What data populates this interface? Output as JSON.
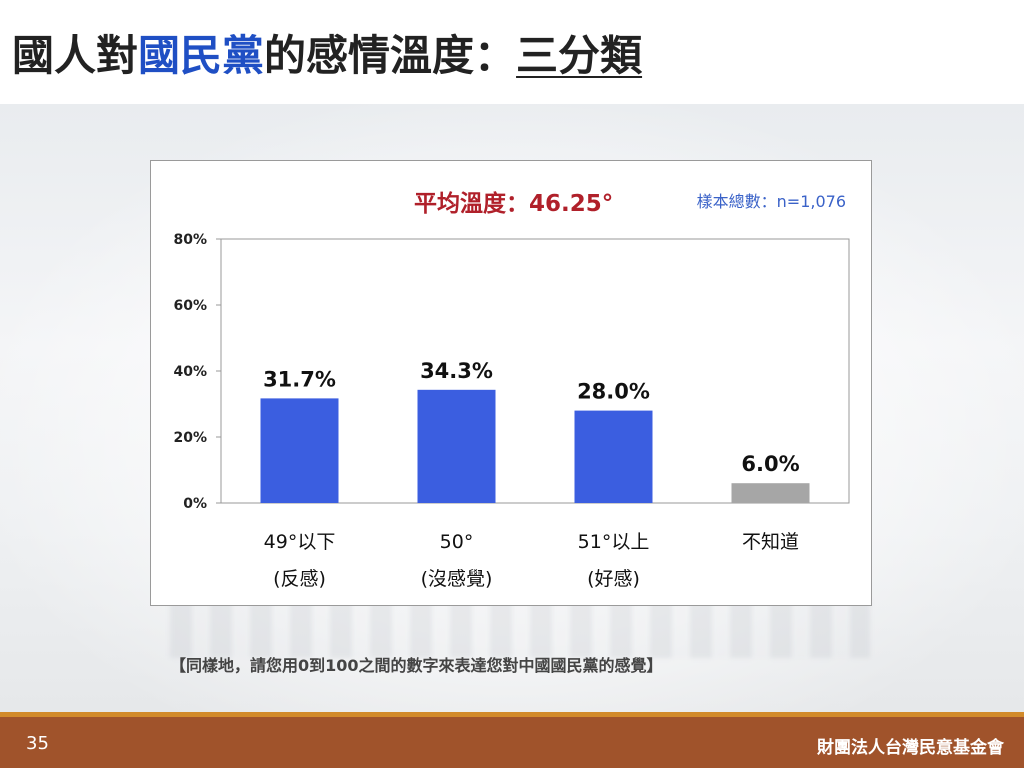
{
  "title": {
    "part1": "國人對",
    "part2": "國民黨",
    "part3": "的感情溫度：",
    "part4": "三分類"
  },
  "chart_data": {
    "type": "bar",
    "avg_label": "平均溫度：46.25°",
    "sample_label": "樣本總數：n=1,076",
    "categories": [
      {
        "line1": "49°以下",
        "line2": "(反感)"
      },
      {
        "line1": "50°",
        "line2": "(沒感覺)"
      },
      {
        "line1": "51°以上",
        "line2": "(好感)"
      },
      {
        "line1": "不知道",
        "line2": ""
      }
    ],
    "values": [
      31.7,
      34.3,
      28.0,
      6.0
    ],
    "value_labels": [
      "31.7%",
      "34.3%",
      "28.0%",
      "6.0%"
    ],
    "yticks": [
      "0%",
      "20%",
      "40%",
      "60%",
      "80%"
    ],
    "ylim": [
      0,
      80
    ],
    "colors": [
      "#3b5ee0",
      "#3b5ee0",
      "#3b5ee0",
      "#a6a6a6"
    ],
    "grid": false
  },
  "question": "【同樣地，請您用0到100之間的數字來表達您對中國國民黨的感覺】",
  "footer": {
    "page_number": "35",
    "org": "財團法人台灣民意基金會"
  }
}
